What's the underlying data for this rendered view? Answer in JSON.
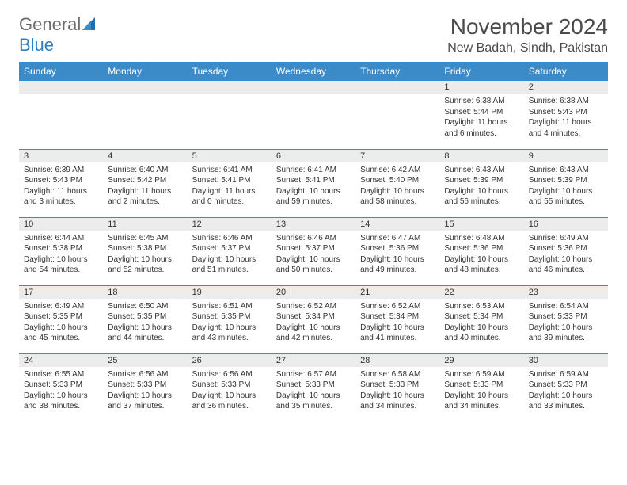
{
  "logo": {
    "word1": "General",
    "word2": "Blue"
  },
  "title": "November 2024",
  "location": "New Badah, Sindh, Pakistan",
  "colors": {
    "header_bg": "#3b8bc9",
    "header_text": "#ffffff",
    "daynum_bg": "#ececec",
    "row_border": "#3b8bc9",
    "logo_gray": "#6b6b6b",
    "logo_blue": "#2f7fbf"
  },
  "weekdays": [
    "Sunday",
    "Monday",
    "Tuesday",
    "Wednesday",
    "Thursday",
    "Friday",
    "Saturday"
  ],
  "weeks": [
    [
      {
        "n": "",
        "sr": "",
        "ss": "",
        "dl": ""
      },
      {
        "n": "",
        "sr": "",
        "ss": "",
        "dl": ""
      },
      {
        "n": "",
        "sr": "",
        "ss": "",
        "dl": ""
      },
      {
        "n": "",
        "sr": "",
        "ss": "",
        "dl": ""
      },
      {
        "n": "",
        "sr": "",
        "ss": "",
        "dl": ""
      },
      {
        "n": "1",
        "sr": "Sunrise: 6:38 AM",
        "ss": "Sunset: 5:44 PM",
        "dl": "Daylight: 11 hours and 6 minutes."
      },
      {
        "n": "2",
        "sr": "Sunrise: 6:38 AM",
        "ss": "Sunset: 5:43 PM",
        "dl": "Daylight: 11 hours and 4 minutes."
      }
    ],
    [
      {
        "n": "3",
        "sr": "Sunrise: 6:39 AM",
        "ss": "Sunset: 5:43 PM",
        "dl": "Daylight: 11 hours and 3 minutes."
      },
      {
        "n": "4",
        "sr": "Sunrise: 6:40 AM",
        "ss": "Sunset: 5:42 PM",
        "dl": "Daylight: 11 hours and 2 minutes."
      },
      {
        "n": "5",
        "sr": "Sunrise: 6:41 AM",
        "ss": "Sunset: 5:41 PM",
        "dl": "Daylight: 11 hours and 0 minutes."
      },
      {
        "n": "6",
        "sr": "Sunrise: 6:41 AM",
        "ss": "Sunset: 5:41 PM",
        "dl": "Daylight: 10 hours and 59 minutes."
      },
      {
        "n": "7",
        "sr": "Sunrise: 6:42 AM",
        "ss": "Sunset: 5:40 PM",
        "dl": "Daylight: 10 hours and 58 minutes."
      },
      {
        "n": "8",
        "sr": "Sunrise: 6:43 AM",
        "ss": "Sunset: 5:39 PM",
        "dl": "Daylight: 10 hours and 56 minutes."
      },
      {
        "n": "9",
        "sr": "Sunrise: 6:43 AM",
        "ss": "Sunset: 5:39 PM",
        "dl": "Daylight: 10 hours and 55 minutes."
      }
    ],
    [
      {
        "n": "10",
        "sr": "Sunrise: 6:44 AM",
        "ss": "Sunset: 5:38 PM",
        "dl": "Daylight: 10 hours and 54 minutes."
      },
      {
        "n": "11",
        "sr": "Sunrise: 6:45 AM",
        "ss": "Sunset: 5:38 PM",
        "dl": "Daylight: 10 hours and 52 minutes."
      },
      {
        "n": "12",
        "sr": "Sunrise: 6:46 AM",
        "ss": "Sunset: 5:37 PM",
        "dl": "Daylight: 10 hours and 51 minutes."
      },
      {
        "n": "13",
        "sr": "Sunrise: 6:46 AM",
        "ss": "Sunset: 5:37 PM",
        "dl": "Daylight: 10 hours and 50 minutes."
      },
      {
        "n": "14",
        "sr": "Sunrise: 6:47 AM",
        "ss": "Sunset: 5:36 PM",
        "dl": "Daylight: 10 hours and 49 minutes."
      },
      {
        "n": "15",
        "sr": "Sunrise: 6:48 AM",
        "ss": "Sunset: 5:36 PM",
        "dl": "Daylight: 10 hours and 48 minutes."
      },
      {
        "n": "16",
        "sr": "Sunrise: 6:49 AM",
        "ss": "Sunset: 5:36 PM",
        "dl": "Daylight: 10 hours and 46 minutes."
      }
    ],
    [
      {
        "n": "17",
        "sr": "Sunrise: 6:49 AM",
        "ss": "Sunset: 5:35 PM",
        "dl": "Daylight: 10 hours and 45 minutes."
      },
      {
        "n": "18",
        "sr": "Sunrise: 6:50 AM",
        "ss": "Sunset: 5:35 PM",
        "dl": "Daylight: 10 hours and 44 minutes."
      },
      {
        "n": "19",
        "sr": "Sunrise: 6:51 AM",
        "ss": "Sunset: 5:35 PM",
        "dl": "Daylight: 10 hours and 43 minutes."
      },
      {
        "n": "20",
        "sr": "Sunrise: 6:52 AM",
        "ss": "Sunset: 5:34 PM",
        "dl": "Daylight: 10 hours and 42 minutes."
      },
      {
        "n": "21",
        "sr": "Sunrise: 6:52 AM",
        "ss": "Sunset: 5:34 PM",
        "dl": "Daylight: 10 hours and 41 minutes."
      },
      {
        "n": "22",
        "sr": "Sunrise: 6:53 AM",
        "ss": "Sunset: 5:34 PM",
        "dl": "Daylight: 10 hours and 40 minutes."
      },
      {
        "n": "23",
        "sr": "Sunrise: 6:54 AM",
        "ss": "Sunset: 5:33 PM",
        "dl": "Daylight: 10 hours and 39 minutes."
      }
    ],
    [
      {
        "n": "24",
        "sr": "Sunrise: 6:55 AM",
        "ss": "Sunset: 5:33 PM",
        "dl": "Daylight: 10 hours and 38 minutes."
      },
      {
        "n": "25",
        "sr": "Sunrise: 6:56 AM",
        "ss": "Sunset: 5:33 PM",
        "dl": "Daylight: 10 hours and 37 minutes."
      },
      {
        "n": "26",
        "sr": "Sunrise: 6:56 AM",
        "ss": "Sunset: 5:33 PM",
        "dl": "Daylight: 10 hours and 36 minutes."
      },
      {
        "n": "27",
        "sr": "Sunrise: 6:57 AM",
        "ss": "Sunset: 5:33 PM",
        "dl": "Daylight: 10 hours and 35 minutes."
      },
      {
        "n": "28",
        "sr": "Sunrise: 6:58 AM",
        "ss": "Sunset: 5:33 PM",
        "dl": "Daylight: 10 hours and 34 minutes."
      },
      {
        "n": "29",
        "sr": "Sunrise: 6:59 AM",
        "ss": "Sunset: 5:33 PM",
        "dl": "Daylight: 10 hours and 34 minutes."
      },
      {
        "n": "30",
        "sr": "Sunrise: 6:59 AM",
        "ss": "Sunset: 5:33 PM",
        "dl": "Daylight: 10 hours and 33 minutes."
      }
    ]
  ]
}
